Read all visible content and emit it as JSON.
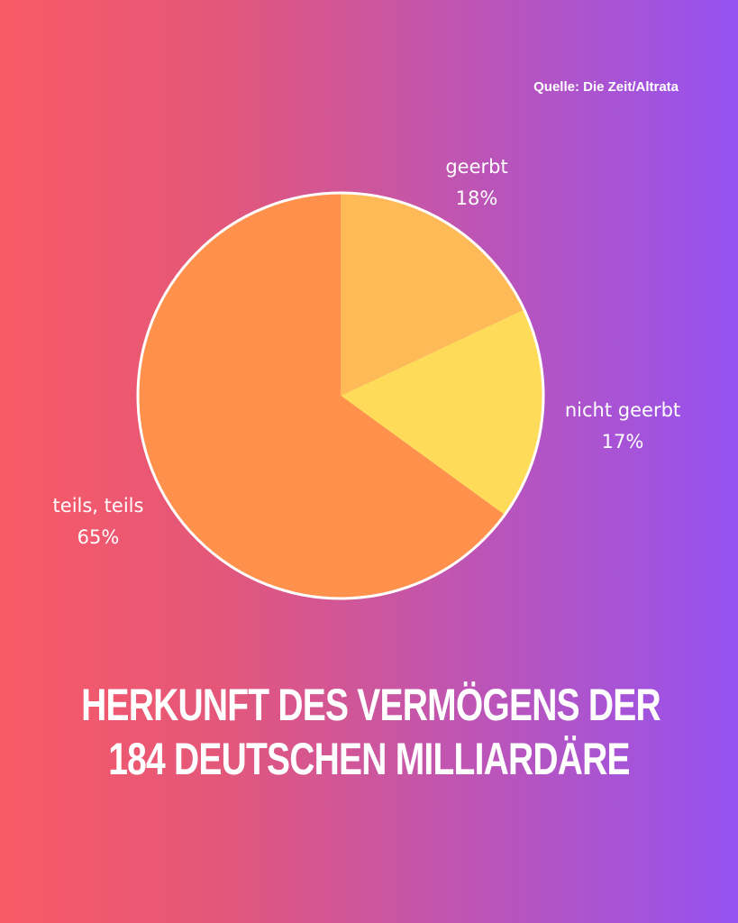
{
  "source": "Quelle: Die Zeit/Altrata",
  "title_lines": [
    "HERKUNFT DES VERMÖGENS DER",
    "184 DEUTSCHEN MILLIARDÄRE"
  ],
  "chart_data": {
    "type": "pie",
    "slices": [
      {
        "label": "geerbt",
        "value": 18,
        "value_label": "18%",
        "color": "#ffba58"
      },
      {
        "label": "nicht geerbt",
        "value": 17,
        "value_label": "17%",
        "color": "#ffdb5a"
      },
      {
        "label": "teils, teils",
        "value": 65,
        "value_label": "65%",
        "color": "#ff914d"
      }
    ],
    "outline_color": "#ffffff"
  }
}
